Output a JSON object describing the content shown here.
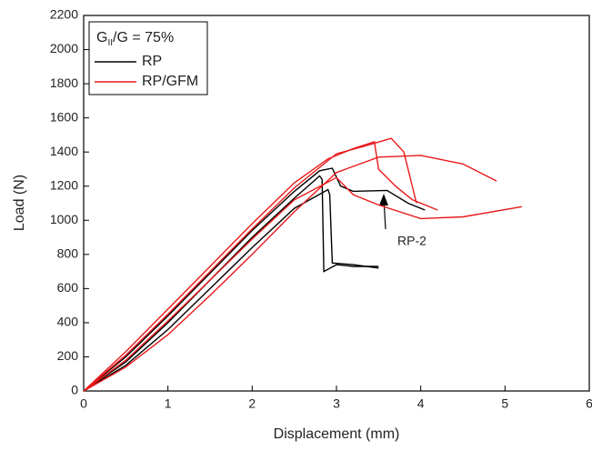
{
  "chart_data": {
    "type": "line",
    "annotation": {
      "base": "G",
      "sub": "II",
      "rest": "/G = 75%"
    },
    "xlabel": "Displacement (mm)",
    "ylabel": "Load (N)",
    "xlim": [
      0,
      6
    ],
    "xticks": [
      0,
      1,
      2,
      3,
      4,
      5,
      6
    ],
    "ylim": [
      0,
      2200
    ],
    "yticks": [
      0,
      200,
      400,
      600,
      800,
      1000,
      1200,
      1400,
      1600,
      1800,
      2000,
      2200
    ],
    "legend": [
      {
        "name": "RP",
        "color": "#000000"
      },
      {
        "name": "RP/GFM",
        "color": "#e8191a"
      }
    ],
    "point_label": "RP-2",
    "series": [
      {
        "color": "#000000",
        "x": [
          0,
          0.5,
          1,
          1.5,
          2,
          2.5,
          2.8,
          2.83,
          2.85,
          3.0,
          3.2,
          3.5
        ],
        "values": [
          0,
          170,
          400,
          650,
          900,
          1130,
          1260,
          1240,
          700,
          740,
          730,
          730
        ]
      },
      {
        "color": "#000000",
        "x": [
          0,
          0.5,
          1,
          1.5,
          2,
          2.5,
          2.8,
          2.95,
          3.05,
          3.2,
          3.6,
          3.85,
          4.05
        ],
        "values": [
          0,
          200,
          440,
          690,
          940,
          1170,
          1290,
          1305,
          1200,
          1170,
          1175,
          1100,
          1060
        ]
      },
      {
        "color": "#000000",
        "x": [
          0,
          0.5,
          1,
          1.5,
          2,
          2.5,
          2.9,
          2.92,
          2.95,
          3.2,
          3.5
        ],
        "values": [
          0,
          150,
          360,
          600,
          840,
          1070,
          1180,
          1150,
          750,
          740,
          720
        ]
      },
      {
        "color": "#e8191a",
        "x": [
          0,
          0.5,
          1,
          1.5,
          2,
          2.5,
          2.9,
          3.2,
          3.45,
          3.5,
          3.7,
          3.9,
          4.2
        ],
        "values": [
          0,
          230,
          480,
          730,
          980,
          1220,
          1360,
          1420,
          1460,
          1300,
          1200,
          1120,
          1060
        ]
      },
      {
        "color": "#e8191a",
        "x": [
          0,
          0.5,
          1,
          1.5,
          2,
          2.5,
          3,
          3.3,
          3.65,
          3.8,
          3.95
        ],
        "values": [
          0,
          210,
          450,
          700,
          950,
          1190,
          1390,
          1430,
          1480,
          1400,
          1100
        ]
      },
      {
        "color": "#e8191a",
        "x": [
          0,
          0.5,
          1,
          1.5,
          2,
          2.5,
          3,
          3.5,
          4,
          4.5,
          4.9
        ],
        "values": [
          0,
          140,
          330,
          560,
          800,
          1050,
          1280,
          1370,
          1380,
          1330,
          1230
        ]
      },
      {
        "color": "#e8191a",
        "x": [
          0,
          0.5,
          1,
          1.5,
          2,
          2.5,
          3,
          3.2,
          3.5,
          4,
          4.5,
          5.2
        ],
        "values": [
          0,
          180,
          410,
          650,
          890,
          1120,
          1250,
          1150,
          1090,
          1010,
          1020,
          1080
        ]
      }
    ]
  }
}
